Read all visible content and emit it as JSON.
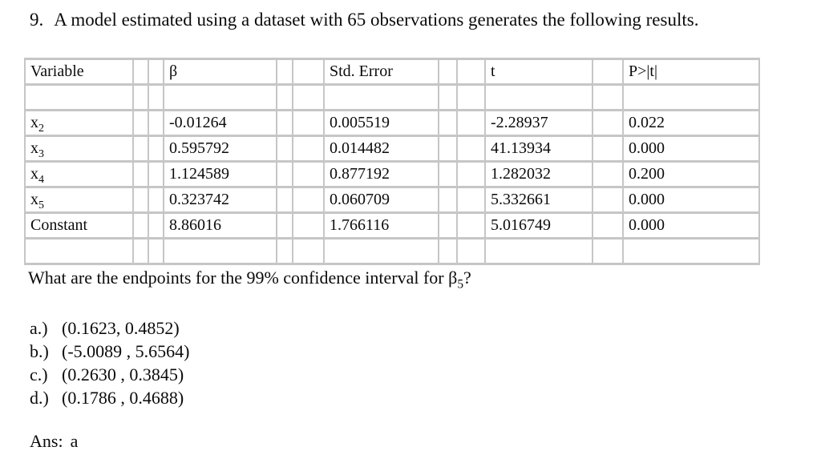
{
  "title": {
    "number": "9.",
    "text": "A model estimated using a dataset with 65 observations generates the following results."
  },
  "table": {
    "headers": [
      "Variable",
      "β",
      "Std. Error",
      "t",
      "P>|t|"
    ],
    "rows": [
      {
        "name": "x",
        "sub": "2",
        "beta": "-0.01264",
        "std_error": "0.005519",
        "t": "-2.28937",
        "p": "0.022"
      },
      {
        "name": "x",
        "sub": "3",
        "beta": "0.595792",
        "std_error": "0.014482",
        "t": "41.13934",
        "p": "0.000"
      },
      {
        "name": "x",
        "sub": "4",
        "beta": "1.124589",
        "std_error": "0.877192",
        "t": "1.282032",
        "p": "0.200"
      },
      {
        "name": "x",
        "sub": "5",
        "beta": "0.323742",
        "std_error": "0.060709",
        "t": "5.332661",
        "p": "0.000"
      },
      {
        "name": "Constant",
        "sub": "",
        "beta": "8.86016",
        "std_error": "1.766116",
        "t": "5.016749",
        "p": "0.000"
      }
    ]
  },
  "question": {
    "text_before": "What are the endpoints for the 99% confidence interval for β",
    "beta_sub": "5",
    "text_after": "?"
  },
  "options": [
    {
      "label": "a.)",
      "value": "(0.1623, 0.4852)"
    },
    {
      "label": "b.)",
      "value": "(-5.0089 , 5.6564)"
    },
    {
      "label": "c.)",
      "value": "(0.2630 , 0.3845)"
    },
    {
      "label": "d.)",
      "value": "(0.1786 , 0.4688)"
    }
  ],
  "answer": {
    "label": "Ans:",
    "value": "a"
  },
  "colors": {
    "border": "#c6c6c6",
    "text": "#0b0b0b",
    "background": "#ffffff"
  }
}
